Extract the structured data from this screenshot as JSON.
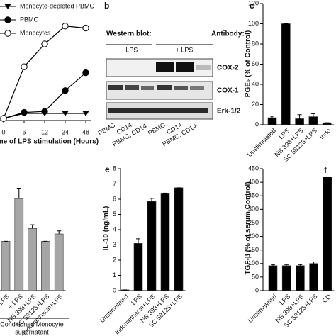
{
  "chart_data": [
    {
      "type": "line",
      "xlabel": "Time of LPS stimulation (Hours)",
      "categories": [
        "0",
        "6",
        "12",
        "24",
        "48"
      ],
      "ylim": [
        0,
        100
      ],
      "series": [
        {
          "name": "Monocyte-depleted PBMC",
          "color": "#000000",
          "marker": "triangle-down",
          "values": [
            0,
            5,
            5,
            5,
            5
          ]
        },
        {
          "name": "PBMC",
          "color": "#000000",
          "marker": "circle-filled",
          "values": [
            0,
            6,
            7,
            28,
            46
          ]
        },
        {
          "name": "Monocytes",
          "color": "#000000",
          "marker": "circle-open",
          "values": [
            0,
            52,
            75,
            93,
            91
          ]
        }
      ]
    },
    {
      "type": "bar",
      "panel": "c",
      "ylabel": "PGE₂ (% of Control)",
      "color": "#000000",
      "categories": [
        "Unstimulated",
        "LPS",
        "NS 398+LPS",
        "SC 58125+LPS",
        "Indo"
      ],
      "values": [
        7,
        100,
        6,
        8,
        2
      ],
      "errors": [
        1.5,
        0,
        4,
        3,
        0
      ],
      "ylim": [
        0,
        120
      ],
      "yticks": [
        0,
        20,
        40,
        60,
        80,
        100,
        120
      ]
    },
    {
      "type": "bar",
      "color": "#a6a6a6",
      "group_label": [
        "Conditioned Monocyte",
        "supernatant"
      ],
      "categories": [
        "- LPS",
        "+ LPS",
        "NS 398+LPS",
        "SC 58125+LPS",
        "Indomethacin+LPS"
      ],
      "values": [
        81,
        151,
        102,
        81,
        93
      ],
      "errors": [
        0,
        17,
        6,
        0,
        5
      ],
      "ylim": [
        0,
        200
      ]
    },
    {
      "type": "bar",
      "panel": "e",
      "ylabel": "IL-10 (ng/mL)",
      "color": "#000000",
      "categories": [
        "Unstimulated",
        "LPS",
        "Indomethacin+LPS",
        "NS 398+LPS",
        "SC 58125+LPS"
      ],
      "values": [
        0.05,
        3.1,
        5.85,
        6.4,
        6.75
      ],
      "errors": [
        0,
        0.3,
        0.2,
        0,
        0
      ],
      "ylim": [
        0,
        8
      ],
      "yticks": [
        0,
        1,
        2,
        3,
        4,
        5,
        6,
        7,
        8
      ]
    },
    {
      "type": "bar",
      "panel": "f",
      "ylabel": "TGF-β (% of serum Control)",
      "color": "#000000",
      "categories": [
        "Unstimulated",
        "LPS",
        "NS 398+LPS",
        "SC 58125+LPS",
        "CD"
      ],
      "values": [
        92,
        92,
        92,
        100,
        420
      ],
      "errors": [
        4,
        4,
        4,
        6,
        0
      ],
      "ylim": [
        0,
        450
      ],
      "yticks": [
        0,
        50,
        100,
        150,
        200,
        250,
        300,
        350,
        400,
        450
      ]
    }
  ],
  "blot": {
    "panel": "b",
    "heading": "Western blot:",
    "antibody_heading": "Antibody:",
    "groups": [
      "- LPS",
      "+ LPS"
    ],
    "antibodies": [
      "COX-2",
      "COX-1",
      "Erk-1/2"
    ],
    "lanes": [
      "PBMC",
      "CD14",
      "PBMC, CD14-",
      "PBMC",
      "CD14",
      "PBMC, CD14-"
    ]
  }
}
